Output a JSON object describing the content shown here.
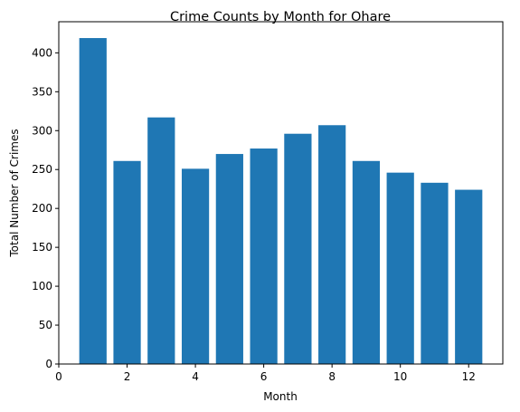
{
  "chart_data": {
    "type": "bar",
    "title": "Crime Counts by Month for Ohare",
    "xlabel": "Month",
    "ylabel": "Total Number of Crimes",
    "x": [
      1,
      2,
      3,
      4,
      5,
      6,
      7,
      8,
      9,
      10,
      11,
      12
    ],
    "values": [
      419,
      261,
      317,
      251,
      270,
      277,
      296,
      307,
      261,
      246,
      233,
      224
    ],
    "xlim": [
      0,
      13
    ],
    "ylim": [
      0,
      440
    ],
    "xticks": [
      "0",
      "2",
      "4",
      "6",
      "8",
      "10",
      "12"
    ],
    "yticks": [
      "0",
      "50",
      "100",
      "150",
      "200",
      "250",
      "300",
      "350",
      "400"
    ],
    "grid": false,
    "legend": "none",
    "bar_color": "#1f77b4"
  }
}
